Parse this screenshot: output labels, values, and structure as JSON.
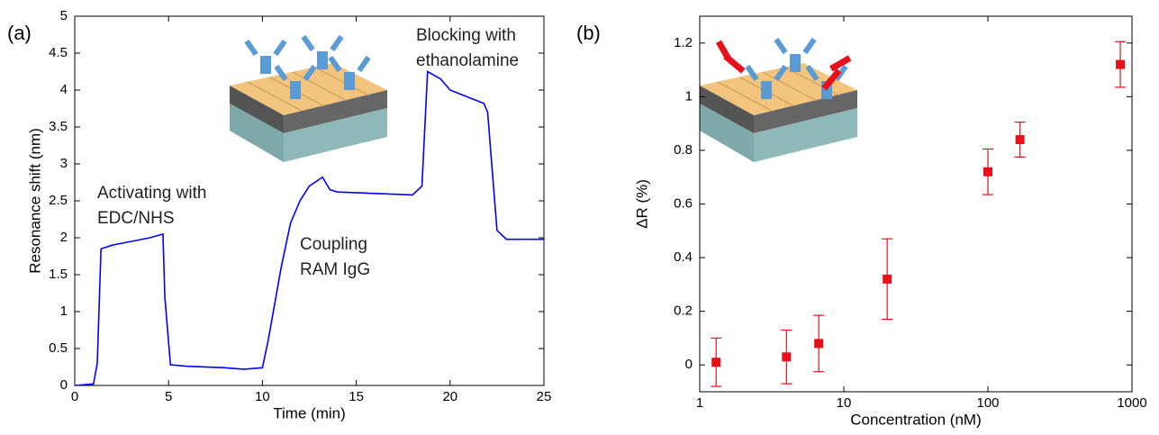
{
  "chart_data": [
    {
      "type": "line",
      "panel_label": "(a)",
      "xlabel": "Time (min)",
      "ylabel": "Resonance shift (nm)",
      "xlim": [
        0,
        25
      ],
      "xticks": [
        0,
        5,
        10,
        15,
        20,
        25
      ],
      "ylim": [
        0,
        5
      ],
      "yticks": [
        0,
        0.5,
        1,
        1.5,
        2,
        2.5,
        3,
        3.5,
        4,
        4.5,
        5
      ],
      "x": [
        0,
        1,
        1.2,
        1.4,
        2,
        3,
        4,
        4.7,
        4.8,
        5.1,
        6,
        8,
        9,
        10,
        10.3,
        11,
        11.5,
        12,
        12.5,
        13.2,
        13.6,
        14,
        16,
        18,
        18.5,
        18.8,
        19.5,
        20,
        21,
        21.8,
        22,
        22.5,
        23,
        25
      ],
      "series": [
        {
          "color": "#0000ff",
          "values": [
            0,
            0.02,
            0.3,
            1.85,
            1.9,
            1.95,
            2,
            2.05,
            1.2,
            0.28,
            0.26,
            0.24,
            0.22,
            0.24,
            0.6,
            1.6,
            2.2,
            2.5,
            2.7,
            2.82,
            2.65,
            2.62,
            2.6,
            2.58,
            2.7,
            4.25,
            4.15,
            4,
            3.9,
            3.82,
            3.7,
            2.1,
            1.98,
            1.98
          ]
        }
      ],
      "annotations": [
        [
          "Activating with",
          "EDC/NHS"
        ],
        [
          "Coupling",
          "RAM IgG"
        ],
        [
          "Blocking with",
          "ethanolamine"
        ]
      ]
    },
    {
      "type": "scatter",
      "panel_label": "(b)",
      "xlabel": "Concentration (nM)",
      "ylabel": "ΔR (%)",
      "xscale": "log",
      "xlim": [
        1,
        1000
      ],
      "xticks": [
        1,
        10,
        100,
        1000
      ],
      "ylim": [
        -0.1,
        1.3
      ],
      "yticks": [
        0,
        0.2,
        0.4,
        0.6,
        0.8,
        1,
        1.2
      ],
      "color": "#e8101a",
      "x": [
        1.3,
        4,
        6.7,
        20,
        100,
        167,
        830
      ],
      "values": [
        0.01,
        0.03,
        0.08,
        0.32,
        0.72,
        0.84,
        1.12
      ],
      "errors": [
        0.09,
        0.1,
        0.105,
        0.15,
        0.085,
        0.065,
        0.085
      ]
    }
  ]
}
